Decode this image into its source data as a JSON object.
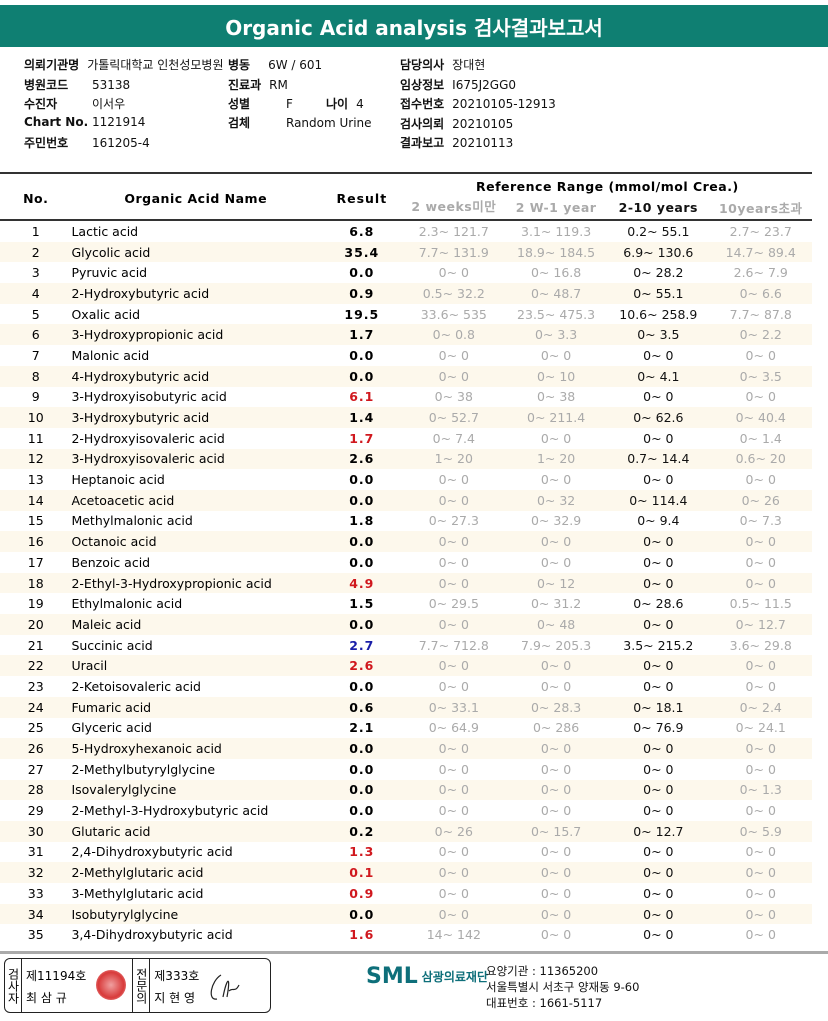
{
  "title": "Organic Acid analysis 검사결과보고서",
  "info": {
    "hospital": {
      "label": "의뢰기관명",
      "value": "가톨릭대학교 인천성모병원"
    },
    "ward": {
      "label": "병동",
      "value": "6W / 601"
    },
    "doctor": {
      "label": "담당의사",
      "value": "장대현"
    },
    "code": {
      "label": "병원코드",
      "value": "53138"
    },
    "dept": {
      "label": "진료과",
      "value": "RM"
    },
    "clinical": {
      "label": "임상정보",
      "value": "I675J2GG0"
    },
    "patient": {
      "label": "수진자",
      "value": "이서우"
    },
    "sex": {
      "label": "성별",
      "value": "F"
    },
    "age": {
      "label": "나이",
      "value": "4"
    },
    "receipt": {
      "label": "접수번호",
      "value": "20210105-12913"
    },
    "chart": {
      "label": "Chart No.",
      "value": "1121914"
    },
    "specimen": {
      "label": "검체",
      "value": "Random Urine"
    },
    "requested": {
      "label": "검사의뢰",
      "value": "20210105"
    },
    "id": {
      "label": "주민번호",
      "value": "161205-4"
    },
    "reported": {
      "label": "결과보고",
      "value": "20210113"
    }
  },
  "table": {
    "headers": {
      "no": "No.",
      "name": "Organic Acid Name",
      "result": "Result",
      "ref": "Reference Range (mmol/mol Crea.)",
      "ranges": [
        "2 weeks미만",
        "2 W-1 year",
        "2-10 years",
        "10years초과"
      ]
    },
    "colors": {
      "high": "#d0181e",
      "low": "#1a1fa8"
    },
    "rows": [
      [
        "1",
        "Lactic acid",
        "6.8",
        "",
        "2.3~ 121.7",
        "3.1~ 119.3",
        "0.2~ 55.1",
        "2.7~ 23.7"
      ],
      [
        "2",
        "Glycolic acid",
        "35.4",
        "",
        "7.7~ 131.9",
        "18.9~ 184.5",
        "6.9~ 130.6",
        "14.7~ 89.4"
      ],
      [
        "3",
        "Pyruvic acid",
        "0.0",
        "",
        "0~ 0",
        "0~ 16.8",
        "0~ 28.2",
        "2.6~ 7.9"
      ],
      [
        "4",
        "2-Hydroxybutyric acid",
        "0.9",
        "",
        "0.5~ 32.2",
        "0~ 48.7",
        "0~ 55.1",
        "0~ 6.6"
      ],
      [
        "5",
        "Oxalic acid",
        "19.5",
        "",
        "33.6~ 535",
        "23.5~ 475.3",
        "10.6~ 258.9",
        "7.7~ 87.8"
      ],
      [
        "6",
        "3-Hydroxypropionic acid",
        "1.7",
        "",
        "0~ 0.8",
        "0~ 3.3",
        "0~ 3.5",
        "0~ 2.2"
      ],
      [
        "7",
        "Malonic acid",
        "0.0",
        "",
        "0~ 0",
        "0~ 0",
        "0~ 0",
        "0~ 0"
      ],
      [
        "8",
        "4-Hydroxybutyric acid",
        "0.0",
        "",
        "0~ 0",
        "0~ 10",
        "0~ 4.1",
        "0~ 3.5"
      ],
      [
        "9",
        "3-Hydroxyisobutyric acid",
        "6.1",
        "high",
        "0~ 38",
        "0~ 38",
        "0~ 0",
        "0~ 0"
      ],
      [
        "10",
        "3-Hydroxybutyric acid",
        "1.4",
        "",
        "0~ 52.7",
        "0~ 211.4",
        "0~ 62.6",
        "0~ 40.4"
      ],
      [
        "11",
        "2-Hydroxyisovaleric acid",
        "1.7",
        "high",
        "0~ 7.4",
        "0~ 0",
        "0~ 0",
        "0~ 1.4"
      ],
      [
        "12",
        "3-Hydroxyisovaleric acid",
        "2.6",
        "",
        "1~ 20",
        "1~ 20",
        "0.7~ 14.4",
        "0.6~ 20"
      ],
      [
        "13",
        "Heptanoic acid",
        "0.0",
        "",
        "0~ 0",
        "0~ 0",
        "0~ 0",
        "0~ 0"
      ],
      [
        "14",
        "Acetoacetic acid",
        "0.0",
        "",
        "0~ 0",
        "0~ 32",
        "0~ 114.4",
        "0~ 26"
      ],
      [
        "15",
        "Methylmalonic acid",
        "1.8",
        "",
        "0~ 27.3",
        "0~ 32.9",
        "0~ 9.4",
        "0~ 7.3"
      ],
      [
        "16",
        "Octanoic acid",
        "0.0",
        "",
        "0~ 0",
        "0~ 0",
        "0~ 0",
        "0~ 0"
      ],
      [
        "17",
        "Benzoic acid",
        "0.0",
        "",
        "0~ 0",
        "0~ 0",
        "0~ 0",
        "0~ 0"
      ],
      [
        "18",
        "2-Ethyl-3-Hydroxypropionic acid",
        "4.9",
        "high",
        "0~ 0",
        "0~ 12",
        "0~ 0",
        "0~ 0"
      ],
      [
        "19",
        "Ethylmalonic acid",
        "1.5",
        "",
        "0~ 29.5",
        "0~ 31.2",
        "0~ 28.6",
        "0.5~ 11.5"
      ],
      [
        "20",
        "Maleic acid",
        "0.0",
        "",
        "0~ 0",
        "0~ 48",
        "0~ 0",
        "0~ 12.7"
      ],
      [
        "21",
        "Succinic acid",
        "2.7",
        "low",
        "7.7~ 712.8",
        "7.9~ 205.3",
        "3.5~ 215.2",
        "3.6~ 29.8"
      ],
      [
        "22",
        "Uracil",
        "2.6",
        "high",
        "0~ 0",
        "0~ 0",
        "0~ 0",
        "0~ 0"
      ],
      [
        "23",
        "2-Ketoisovaleric acid",
        "0.0",
        "",
        "0~ 0",
        "0~ 0",
        "0~ 0",
        "0~ 0"
      ],
      [
        "24",
        "Fumaric acid",
        "0.6",
        "",
        "0~ 33.1",
        "0~ 28.3",
        "0~ 18.1",
        "0~ 2.4"
      ],
      [
        "25",
        "Glyceric acid",
        "2.1",
        "",
        "0~ 64.9",
        "0~ 286",
        "0~ 76.9",
        "0~ 24.1"
      ],
      [
        "26",
        "5-Hydroxyhexanoic acid",
        "0.0",
        "",
        "0~ 0",
        "0~ 0",
        "0~ 0",
        "0~ 0"
      ],
      [
        "27",
        "2-Methylbutyrylglycine",
        "0.0",
        "",
        "0~ 0",
        "0~ 0",
        "0~ 0",
        "0~ 0"
      ],
      [
        "28",
        "Isovalerylglycine",
        "0.0",
        "",
        "0~ 0",
        "0~ 0",
        "0~ 0",
        "0~ 1.3"
      ],
      [
        "29",
        "2-Methyl-3-Hydroxybutyric acid",
        "0.0",
        "",
        "0~ 0",
        "0~ 0",
        "0~ 0",
        "0~ 0"
      ],
      [
        "30",
        "Glutaric acid",
        "0.2",
        "",
        "0~ 26",
        "0~ 15.7",
        "0~ 12.7",
        "0~ 5.9"
      ],
      [
        "31",
        "2,4-Dihydroxybutyric acid",
        "1.3",
        "high",
        "0~ 0",
        "0~ 0",
        "0~ 0",
        "0~ 0"
      ],
      [
        "32",
        "2-Methylglutaric acid",
        "0.1",
        "high",
        "0~ 0",
        "0~ 0",
        "0~ 0",
        "0~ 0"
      ],
      [
        "33",
        "3-Methylglutaric acid",
        "0.9",
        "high",
        "0~ 0",
        "0~ 0",
        "0~ 0",
        "0~ 0"
      ],
      [
        "34",
        "Isobutyrylglycine",
        "0.0",
        "",
        "0~ 0",
        "0~ 0",
        "0~ 0",
        "0~ 0"
      ],
      [
        "35",
        "3,4-Dihydroxybutyric acid",
        "1.6",
        "high",
        "14~ 142",
        "0~ 0",
        "0~ 0",
        "0~ 0"
      ]
    ]
  },
  "footer": {
    "examiner": {
      "label": "검사자",
      "license": "제11194호",
      "name": "최 삼 규"
    },
    "specialist": {
      "label": "전문의",
      "license": "제333호",
      "name": "지 현 영"
    },
    "logo": {
      "abbr": "SML",
      "name": "삼광의료재단"
    },
    "org_code": "요양기관 : 11365200",
    "address": "서울특별시 서초구 양재동 9-60",
    "phone": "대표번호 : 1661-5117"
  }
}
